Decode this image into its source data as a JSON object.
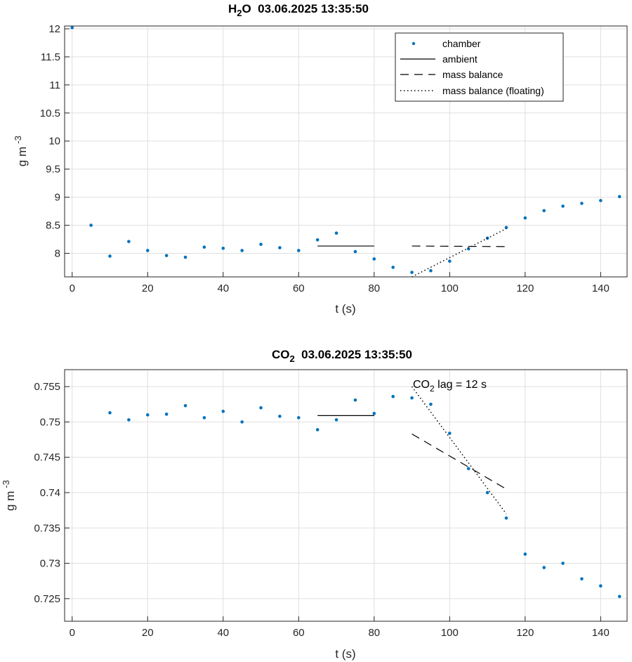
{
  "chart_data": [
    {
      "type": "scatter",
      "title": {
        "main": "H",
        "sub": "2",
        "rest": "O  03.06.2025 13:35:50"
      },
      "xlabel": "t (s)",
      "ylabel": {
        "main": "g m",
        "sup": "-3"
      },
      "xlim": [
        -2,
        147
      ],
      "ylim": [
        7.58,
        12.05
      ],
      "xticks": [
        "0",
        "20",
        "40",
        "60",
        "80",
        "100",
        "120",
        "140"
      ],
      "yticks": [
        "8",
        "8.5",
        "9",
        "9.5",
        "10",
        "10.5",
        "11",
        "11.5",
        "12"
      ],
      "grid": true,
      "legend_position": "top-right",
      "legend": [
        "chamber",
        "ambient",
        "mass balance",
        "mass balance (floating)"
      ],
      "series": [
        {
          "name": "chamber",
          "style": "point",
          "color": "#0072bd",
          "x": [
            0,
            5,
            10,
            15,
            20,
            25,
            30,
            35,
            40,
            45,
            50,
            55,
            60,
            65,
            70,
            75,
            80,
            85,
            90,
            95,
            100,
            105,
            110,
            115,
            120,
            125,
            130,
            135,
            140,
            145
          ],
          "y": [
            12.02,
            8.5,
            7.95,
            8.21,
            8.05,
            7.96,
            7.93,
            8.11,
            8.09,
            8.05,
            8.16,
            8.1,
            8.05,
            8.24,
            8.36,
            8.03,
            7.9,
            7.75,
            7.66,
            7.69,
            7.86,
            8.08,
            8.27,
            8.46,
            8.63,
            8.76,
            8.84,
            8.89,
            8.94,
            9.01
          ]
        },
        {
          "name": "ambient",
          "style": "solid",
          "color": "#000000",
          "x": [
            65,
            80
          ],
          "y": [
            8.13,
            8.13
          ]
        },
        {
          "name": "mass balance",
          "style": "dashed",
          "color": "#000000",
          "x": [
            90,
            115
          ],
          "y": [
            8.13,
            8.12
          ]
        },
        {
          "name": "mass balance (floating)",
          "style": "dotted",
          "color": "#000000",
          "x": [
            90,
            115
          ],
          "y": [
            7.58,
            8.44
          ]
        }
      ]
    },
    {
      "type": "scatter",
      "title": {
        "main": "CO",
        "sub": "2",
        "rest": "  03.06.2025 13:35:50"
      },
      "xlabel": "t (s)",
      "ylabel": {
        "main": "g m",
        "sup": "-3"
      },
      "xlim": [
        -2,
        147
      ],
      "ylim": [
        0.7218,
        0.7574
      ],
      "xticks": [
        "0",
        "20",
        "40",
        "60",
        "80",
        "100",
        "120",
        "140"
      ],
      "yticks": [
        "0.725",
        "0.73",
        "0.735",
        "0.74",
        "0.745",
        "0.75",
        "0.755"
      ],
      "grid": true,
      "annotation": {
        "main": "CO",
        "sub": "2",
        "rest": " lag = 12 s",
        "x": 90,
        "y": 0.7562
      },
      "series": [
        {
          "name": "chamber",
          "style": "point",
          "color": "#0072bd",
          "x": [
            10,
            15,
            20,
            25,
            30,
            35,
            40,
            45,
            50,
            55,
            60,
            65,
            70,
            75,
            80,
            85,
            90,
            95,
            100,
            105,
            110,
            115,
            120,
            125,
            130,
            135,
            140,
            145
          ],
          "y": [
            0.7513,
            0.7503,
            0.751,
            0.7511,
            0.7523,
            0.7506,
            0.7515,
            0.75,
            0.752,
            0.7508,
            0.7506,
            0.7489,
            0.7503,
            0.7531,
            0.7512,
            0.7536,
            0.7534,
            0.7525,
            0.7484,
            0.7434,
            0.74,
            0.7364,
            0.7313,
            0.7294,
            0.73,
            0.7278,
            0.7268,
            0.7253
          ]
        },
        {
          "name": "ambient",
          "style": "solid",
          "color": "#000000",
          "x": [
            65,
            80
          ],
          "y": [
            0.7509,
            0.7509
          ]
        },
        {
          "name": "mass balance",
          "style": "dashed",
          "color": "#000000",
          "x": [
            90,
            115
          ],
          "y": [
            0.7483,
            0.7405
          ]
        },
        {
          "name": "mass balance (floating)",
          "style": "dotted",
          "color": "#000000",
          "x": [
            90,
            115
          ],
          "y": [
            0.755,
            0.737
          ]
        }
      ]
    }
  ]
}
